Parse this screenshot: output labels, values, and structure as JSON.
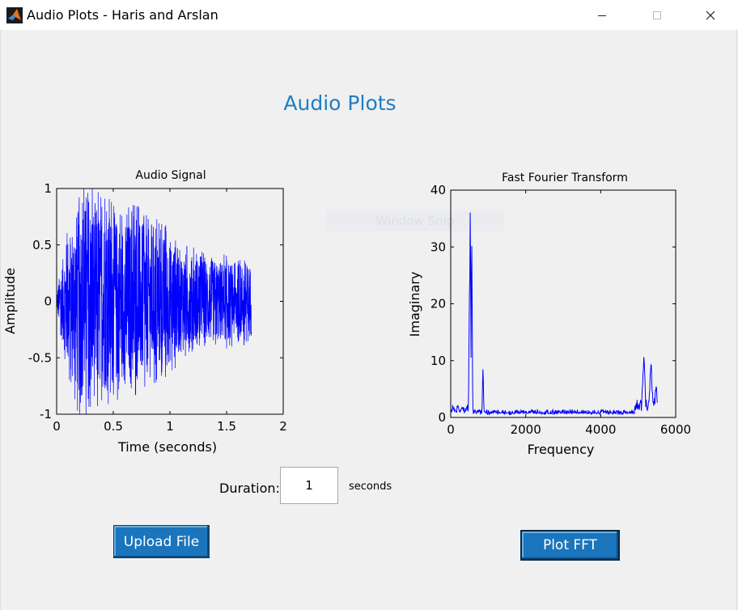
{
  "window": {
    "title": "Audio Plots - Haris and Arslan",
    "minimize_icon": "minimize-icon",
    "maximize_icon": "maximize-icon",
    "close_icon": "close-icon",
    "app_icon": "matlab-logo-icon"
  },
  "page": {
    "title": "Audio Plots",
    "ghost_text": "Window Snip"
  },
  "controls": {
    "duration_label": "Duration:",
    "duration_value": "1",
    "seconds_label": "seconds",
    "upload_label": "Upload File",
    "plot_fft_label": "Plot FFT"
  },
  "colors": {
    "plot_line": "#0000ff",
    "title_accent": "#1d7ec4",
    "button": "#1a75bc"
  },
  "chart_data": [
    {
      "type": "line",
      "title": "Audio Signal",
      "xlabel": "Time (seconds)",
      "ylabel": "Amplitude",
      "xlim": [
        0,
        2
      ],
      "ylim": [
        -1,
        1
      ],
      "xticks": [
        "0",
        "0.5",
        "1",
        "1.5",
        "2"
      ],
      "yticks": [
        "-1",
        "-0.5",
        "0",
        "0.5",
        "1"
      ],
      "grid": false,
      "series": [
        {
          "envelope_t": [
            0,
            0.02,
            0.1,
            0.2,
            0.3,
            0.4,
            0.5,
            0.6,
            0.7,
            0.8,
            0.9,
            1.0,
            1.1,
            1.2,
            1.3,
            1.4,
            1.5,
            1.6,
            1.7,
            1.72
          ],
          "envelope_amp": [
            0.05,
            0.2,
            0.6,
            0.85,
            0.88,
            0.8,
            0.75,
            0.7,
            0.72,
            0.65,
            0.6,
            0.55,
            0.45,
            0.4,
            0.38,
            0.36,
            0.35,
            0.33,
            0.33,
            0.3
          ]
        }
      ]
    },
    {
      "type": "line",
      "title": "Fast Fourier Transform",
      "xlabel": "Frequency",
      "ylabel": "Imaginary",
      "xlim": [
        0,
        6000
      ],
      "ylim": [
        0,
        40
      ],
      "xticks": [
        "0",
        "2000",
        "4000",
        "6000"
      ],
      "yticks": [
        "0",
        "10",
        "20",
        "30",
        "40"
      ],
      "grid": false,
      "series": [
        {
          "peaks": [
            {
              "x": 500,
              "y": 21
            },
            {
              "x": 520,
              "y": 36
            },
            {
              "x": 560,
              "y": 30
            },
            {
              "x": 860,
              "y": 8
            },
            {
              "x": 5150,
              "y": 8.5
            },
            {
              "x": 5340,
              "y": 7.8
            },
            {
              "x": 5480,
              "y": 3.2
            }
          ],
          "x_end": 5510,
          "noise_floor": 0.8
        }
      ]
    }
  ]
}
